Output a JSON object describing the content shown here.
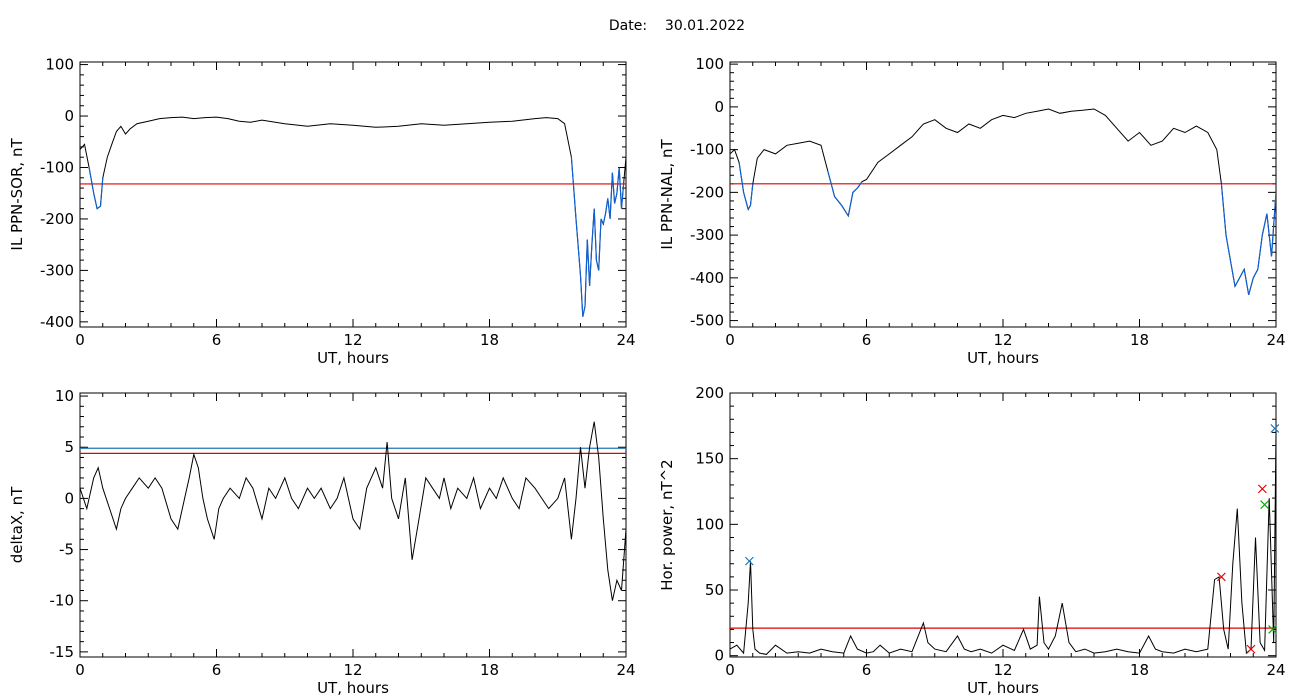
{
  "header": {
    "date_label": "Date:",
    "date_value": "30.01.2022"
  },
  "colors": {
    "series": "#000000",
    "threshold_red": "#e00000",
    "threshold_blue": "#1f77b4",
    "highlight": "#1060d0",
    "marker_green": "#00b000"
  },
  "chart_data": [
    {
      "id": "ppn-sor",
      "type": "line",
      "xlabel": "UT, hours",
      "ylabel": "IL PPN-SOR, nT",
      "xlim": [
        0,
        24
      ],
      "ylim": [
        -410,
        105
      ],
      "xticks": [
        0,
        6,
        12,
        18,
        24
      ],
      "yticks": [
        -400,
        -300,
        -200,
        -100,
        0,
        100
      ],
      "threshold": -132,
      "series": [
        {
          "x": [
            0,
            0.2,
            0.4,
            0.6,
            0.75,
            0.9,
            1.0,
            1.2,
            1.4,
            1.6,
            1.8,
            2.0,
            2.2,
            2.5,
            3.0,
            3.5,
            4.0,
            4.5,
            5.0,
            5.5,
            6.0,
            6.5,
            7.0,
            7.5,
            8.0,
            9.0,
            10.0,
            11.0,
            12.0,
            13.0,
            14.0,
            15.0,
            16.0,
            17.0,
            18.0,
            19.0,
            20.0,
            20.5,
            21.0,
            21.3,
            21.6,
            21.8,
            22.0,
            22.1,
            22.2,
            22.3,
            22.4,
            22.5,
            22.6,
            22.7,
            22.8,
            22.9,
            23.0,
            23.1,
            23.2,
            23.3,
            23.4,
            23.5,
            23.6,
            23.7,
            23.8,
            23.9,
            24.0
          ],
          "y": [
            -65,
            -55,
            -100,
            -150,
            -180,
            -175,
            -120,
            -80,
            -55,
            -30,
            -20,
            -35,
            -25,
            -15,
            -10,
            -5,
            -3,
            -2,
            -5,
            -3,
            -2,
            -5,
            -10,
            -12,
            -8,
            -15,
            -20,
            -15,
            -18,
            -22,
            -20,
            -15,
            -18,
            -15,
            -12,
            -10,
            -5,
            -3,
            -5,
            -15,
            -80,
            -200,
            -310,
            -390,
            -370,
            -240,
            -330,
            -250,
            -180,
            -280,
            -300,
            -200,
            -210,
            -190,
            -160,
            -200,
            -110,
            -170,
            -150,
            -100,
            -180,
            -130,
            -80
          ]
        }
      ],
      "markers": []
    },
    {
      "id": "ppn-nal",
      "type": "line",
      "xlabel": "UT, hours",
      "ylabel": "IL PPN-NAL, nT",
      "xlim": [
        0,
        24
      ],
      "ylim": [
        -515,
        105
      ],
      "xticks": [
        0,
        6,
        12,
        18,
        24
      ],
      "yticks": [
        -500,
        -400,
        -300,
        -200,
        -100,
        0,
        100
      ],
      "threshold": -180,
      "series": [
        {
          "x": [
            0,
            0.2,
            0.4,
            0.6,
            0.8,
            0.9,
            1.0,
            1.2,
            1.5,
            2.0,
            2.5,
            3.0,
            3.5,
            4.0,
            4.3,
            4.6,
            4.9,
            5.2,
            5.4,
            5.6,
            5.8,
            6.0,
            6.5,
            7.0,
            7.5,
            8.0,
            8.5,
            9.0,
            9.5,
            10.0,
            10.5,
            11.0,
            11.5,
            12.0,
            12.5,
            13.0,
            13.5,
            14.0,
            14.5,
            15.0,
            15.5,
            16.0,
            16.5,
            17.0,
            17.5,
            18.0,
            18.5,
            19.0,
            19.5,
            20.0,
            20.5,
            21.0,
            21.4,
            21.6,
            21.8,
            22.0,
            22.2,
            22.4,
            22.6,
            22.8,
            23.0,
            23.2,
            23.4,
            23.6,
            23.8,
            24.0
          ],
          "y": [
            -110,
            -100,
            -130,
            -200,
            -240,
            -230,
            -180,
            -120,
            -100,
            -110,
            -90,
            -85,
            -80,
            -90,
            -150,
            -210,
            -230,
            -255,
            -200,
            -190,
            -175,
            -170,
            -130,
            -110,
            -90,
            -70,
            -40,
            -30,
            -50,
            -60,
            -40,
            -50,
            -30,
            -20,
            -25,
            -15,
            -10,
            -5,
            -15,
            -10,
            -8,
            -5,
            -20,
            -50,
            -80,
            -60,
            -90,
            -80,
            -50,
            -60,
            -45,
            -60,
            -100,
            -180,
            -300,
            -360,
            -420,
            -400,
            -380,
            -440,
            -400,
            -380,
            -300,
            -250,
            -350,
            -200
          ]
        }
      ],
      "markers": []
    },
    {
      "id": "deltax",
      "type": "line",
      "xlabel": "UT, hours",
      "ylabel": "deltaX, nT",
      "xlim": [
        0,
        24
      ],
      "ylim": [
        -15.5,
        10.3
      ],
      "xticks": [
        0,
        6,
        12,
        18,
        24
      ],
      "yticks": [
        -15,
        -10,
        -5,
        0,
        5,
        10
      ],
      "threshold": 4.4,
      "threshold2": 4.9,
      "series": [
        {
          "x": [
            0,
            0.3,
            0.6,
            0.8,
            1.0,
            1.3,
            1.6,
            1.8,
            2.0,
            2.3,
            2.6,
            3.0,
            3.3,
            3.6,
            4.0,
            4.3,
            4.6,
            4.8,
            5.0,
            5.2,
            5.4,
            5.6,
            5.9,
            6.1,
            6.3,
            6.6,
            7.0,
            7.3,
            7.6,
            8.0,
            8.3,
            8.6,
            9.0,
            9.3,
            9.6,
            10.0,
            10.3,
            10.6,
            11.0,
            11.3,
            11.6,
            12.0,
            12.3,
            12.6,
            13.0,
            13.3,
            13.5,
            13.7,
            14.0,
            14.3,
            14.6,
            14.9,
            15.2,
            15.5,
            15.8,
            16.0,
            16.3,
            16.6,
            17.0,
            17.3,
            17.6,
            18.0,
            18.3,
            18.6,
            19.0,
            19.3,
            19.6,
            20.0,
            20.3,
            20.6,
            21.0,
            21.3,
            21.6,
            21.8,
            22.0,
            22.2,
            22.4,
            22.6,
            22.8,
            23.0,
            23.2,
            23.4,
            23.6,
            23.8,
            24.0
          ],
          "y": [
            1,
            -1,
            2,
            3,
            1,
            -1,
            -3,
            -1,
            0,
            1,
            2,
            1,
            2,
            1,
            -2,
            -3,
            0,
            2,
            4.3,
            3,
            0,
            -2,
            -4,
            -1,
            0,
            1,
            0,
            2,
            1,
            -2,
            1,
            0,
            2,
            0,
            -1,
            1,
            0,
            1,
            -1,
            0,
            2,
            -2,
            -3,
            1,
            3,
            1,
            5.5,
            0,
            -2,
            2,
            -6,
            -2,
            2,
            1,
            0,
            2,
            -1,
            1,
            0,
            2,
            -1,
            1,
            0,
            2,
            0,
            -1,
            2,
            1,
            0,
            -1,
            0,
            2,
            -4,
            0,
            5,
            1,
            5,
            7.5,
            4,
            -2,
            -7,
            -10,
            -8,
            -9,
            -3
          ]
        }
      ],
      "markers": []
    },
    {
      "id": "hor-power",
      "type": "line",
      "xlabel": "UT, hours",
      "ylabel": "Hor. power, nT^2",
      "xlim": [
        0,
        24
      ],
      "ylim": [
        -1,
        200
      ],
      "xticks": [
        0,
        6,
        12,
        18,
        24
      ],
      "yticks": [
        0,
        50,
        100,
        150,
        200
      ],
      "threshold": 21,
      "series": [
        {
          "x": [
            0,
            0.3,
            0.6,
            0.8,
            0.9,
            1.0,
            1.1,
            1.3,
            1.6,
            2.0,
            2.5,
            3.0,
            3.5,
            4.0,
            4.5,
            5.0,
            5.3,
            5.6,
            6.0,
            6.3,
            6.6,
            7.0,
            7.5,
            8.0,
            8.5,
            8.7,
            9.0,
            9.5,
            10.0,
            10.3,
            10.6,
            11.0,
            11.5,
            12.0,
            12.5,
            12.9,
            13.2,
            13.5,
            13.6,
            13.8,
            14.0,
            14.3,
            14.6,
            14.9,
            15.2,
            15.6,
            16.0,
            16.5,
            17.0,
            17.5,
            18.0,
            18.4,
            18.7,
            19.0,
            19.5,
            20.0,
            20.5,
            21.0,
            21.3,
            21.5,
            21.7,
            21.9,
            22.1,
            22.3,
            22.5,
            22.7,
            22.9,
            23.1,
            23.3,
            23.5,
            23.7,
            23.9,
            24.0
          ],
          "y": [
            5,
            8,
            2,
            40,
            72,
            20,
            5,
            2,
            1,
            8,
            2,
            3,
            2,
            5,
            3,
            2,
            15,
            5,
            2,
            3,
            8,
            2,
            5,
            3,
            25,
            10,
            5,
            3,
            15,
            5,
            3,
            5,
            2,
            8,
            4,
            20,
            5,
            8,
            45,
            10,
            5,
            15,
            40,
            10,
            3,
            5,
            2,
            3,
            5,
            3,
            2,
            15,
            5,
            3,
            2,
            5,
            3,
            5,
            58,
            60,
            20,
            5,
            70,
            112,
            40,
            2,
            5,
            90,
            10,
            4,
            120,
            10,
            170
          ]
        }
      ],
      "markers": [
        {
          "x": 0.85,
          "y": 72,
          "color": "#1f77b4",
          "symbol": "x"
        },
        {
          "x": 21.6,
          "y": 60,
          "color": "#e00000",
          "symbol": "x"
        },
        {
          "x": 22.9,
          "y": 5,
          "color": "#e00000",
          "symbol": "x"
        },
        {
          "x": 23.4,
          "y": 127,
          "color": "#e00000",
          "symbol": "x"
        },
        {
          "x": 23.5,
          "y": 115,
          "color": "#00b000",
          "symbol": "x"
        },
        {
          "x": 23.85,
          "y": 20,
          "color": "#00b000",
          "symbol": "x"
        },
        {
          "x": 23.95,
          "y": 173,
          "color": "#1f77b4",
          "symbol": "x"
        }
      ]
    }
  ]
}
